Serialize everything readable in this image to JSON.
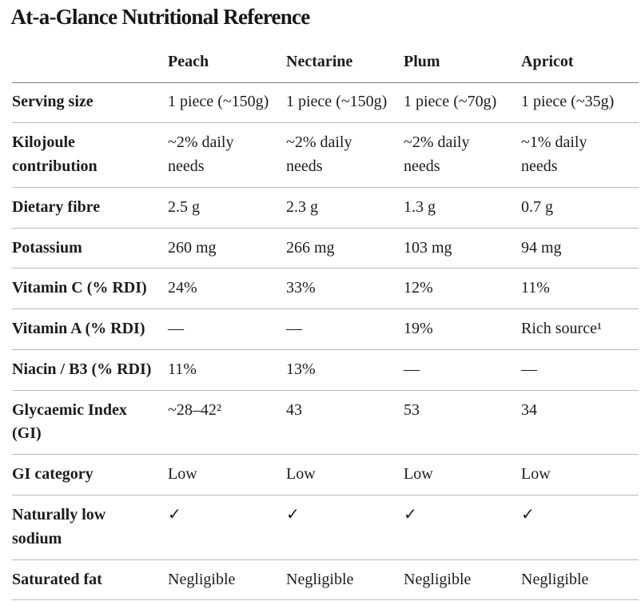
{
  "page": {
    "title": "At-a-Glance Nutritional Reference"
  },
  "colors": {
    "background": "#ffffff",
    "text": "#1c1c1c",
    "header_rule": "#7f7f7f",
    "row_rule": "#b9b9b9"
  },
  "chart_data": {
    "type": "table",
    "title": "At-a-Glance Nutritional Reference",
    "columns": [
      "",
      "Peach",
      "Nectarine",
      "Plum",
      "Apricot"
    ],
    "rows": [
      {
        "label": "Serving size",
        "values": [
          "1 piece (~150g)",
          "1 piece (~150g)",
          "1 piece (~70g)",
          "1 piece (~35g)"
        ]
      },
      {
        "label": "Kilojoule contribution",
        "values": [
          "~2% daily needs",
          "~2% daily needs",
          "~2% daily needs",
          "~1% daily needs"
        ]
      },
      {
        "label": "Dietary fibre",
        "values": [
          "2.5 g",
          "2.3 g",
          "1.3 g",
          "0.7 g"
        ]
      },
      {
        "label": "Potassium",
        "values": [
          "260 mg",
          "266 mg",
          "103 mg",
          "94 mg"
        ]
      },
      {
        "label": "Vitamin C (% RDI)",
        "values": [
          "24%",
          "33%",
          "12%",
          "11%"
        ]
      },
      {
        "label": "Vitamin A (% RDI)",
        "values": [
          "—",
          "—",
          "19%",
          "Rich source¹"
        ]
      },
      {
        "label": "Niacin / B3 (% RDI)",
        "values": [
          "11%",
          "13%",
          "—",
          "—"
        ]
      },
      {
        "label": "Glycaemic Index (GI)",
        "values": [
          "~28–42²",
          "43",
          "53",
          "34"
        ]
      },
      {
        "label": "GI category",
        "values": [
          "Low",
          "Low",
          "Low",
          "Low"
        ]
      },
      {
        "label": "Naturally low sodium",
        "values": [
          "✓",
          "✓",
          "✓",
          "✓"
        ]
      },
      {
        "label": "Saturated fat",
        "values": [
          "Negligible",
          "Negligible",
          "Negligible",
          "Negligible"
        ]
      }
    ]
  }
}
